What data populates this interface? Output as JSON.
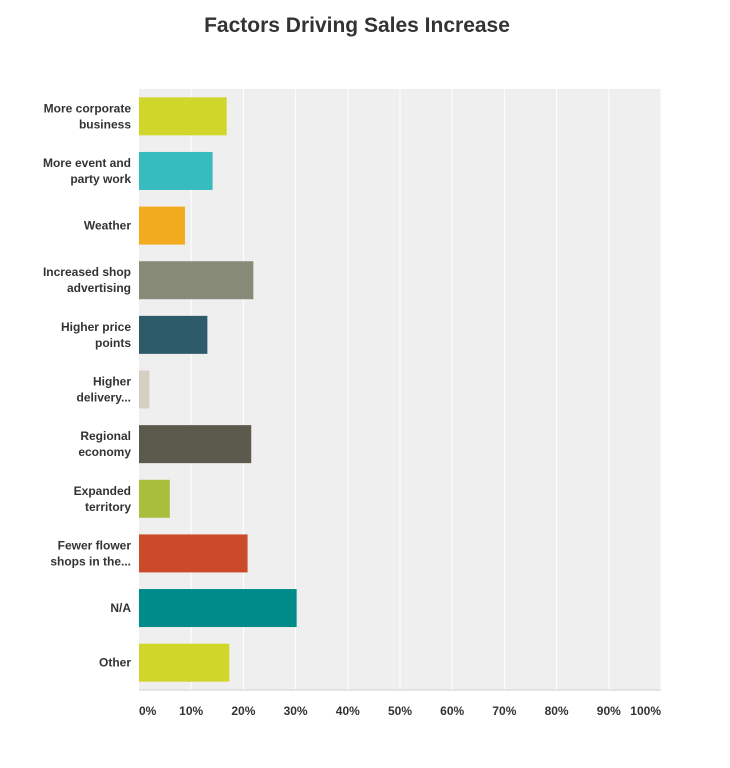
{
  "chart_data": {
    "type": "bar",
    "orientation": "horizontal",
    "title": "Factors Driving Sales Increase",
    "categories": [
      [
        "More corporate",
        "business"
      ],
      [
        "More event and",
        "party work"
      ],
      [
        "Weather"
      ],
      [
        "Increased shop",
        "advertising"
      ],
      [
        "Higher price",
        "points"
      ],
      [
        "Higher",
        "delivery..."
      ],
      [
        "Regional",
        "economy"
      ],
      [
        "Expanded",
        "territory"
      ],
      [
        "Fewer flower",
        "shops in the..."
      ],
      [
        "N/A"
      ],
      [
        "Other"
      ]
    ],
    "values": [
      16.8,
      14.1,
      8.8,
      21.9,
      13.1,
      2.0,
      21.5,
      5.9,
      20.8,
      30.2,
      17.3
    ],
    "colors": [
      "#d0d62a",
      "#36bbbf",
      "#f2ab1e",
      "#888a78",
      "#2d5b6a",
      "#d6d0c4",
      "#5c5a4c",
      "#a8be3c",
      "#cb4a2a",
      "#008b8b",
      "#d0d62a"
    ],
    "xticks": [
      "0%",
      "10%",
      "20%",
      "30%",
      "40%",
      "50%",
      "60%",
      "70%",
      "80%",
      "90%",
      "100%"
    ],
    "xlim": [
      0,
      100
    ],
    "grid": true,
    "legend": "none",
    "xlabel": "",
    "ylabel": ""
  }
}
